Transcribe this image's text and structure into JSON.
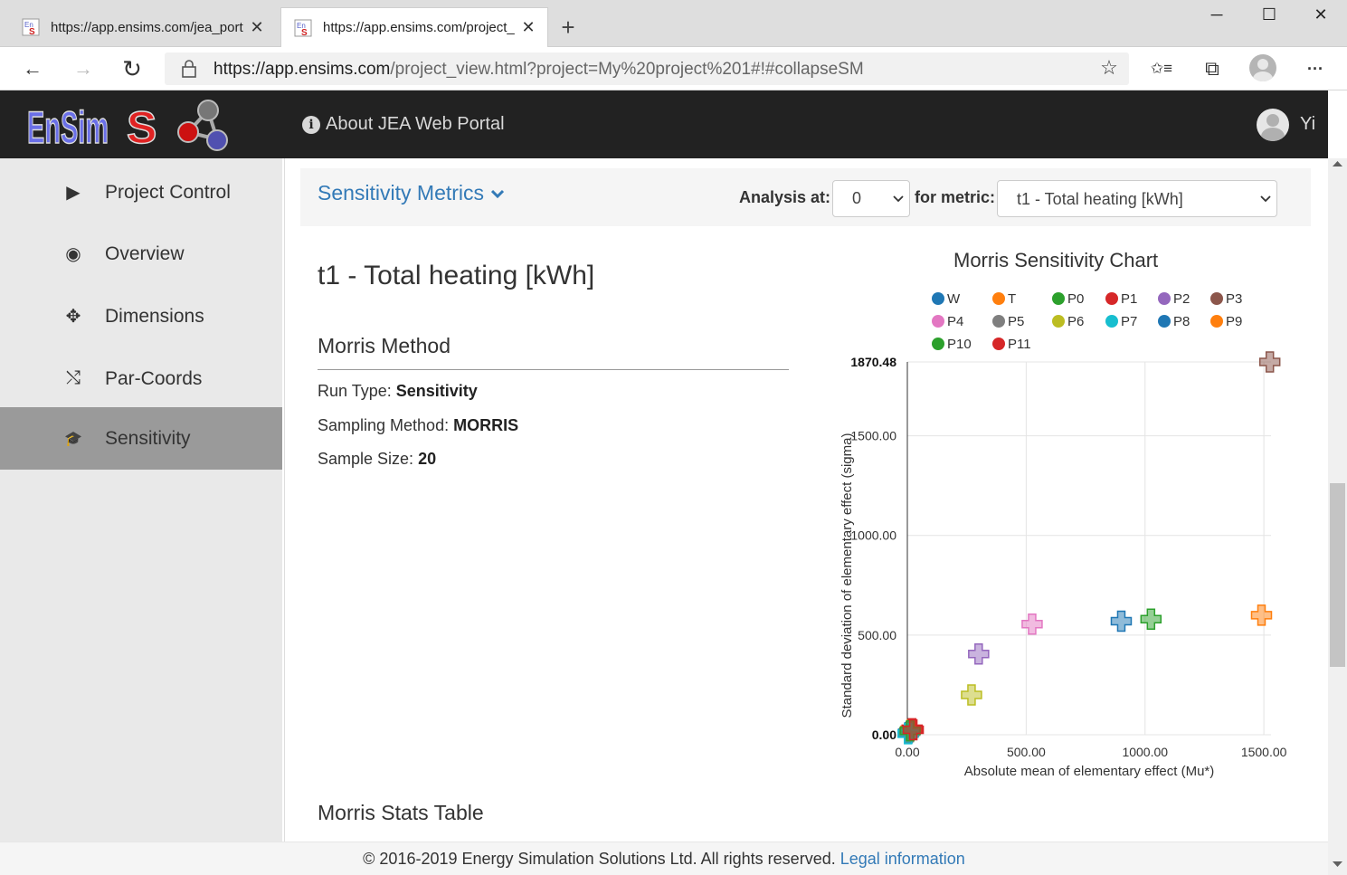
{
  "browser": {
    "tabs": [
      {
        "title": "https://app.ensims.com/jea_port",
        "close": "✕"
      },
      {
        "title": "https://app.ensims.com/project_",
        "close": "✕"
      }
    ],
    "new_tab": "+",
    "window_controls": {
      "minimize": "─",
      "maximize": "☐",
      "close": "✕"
    },
    "nav": {
      "back": "←",
      "forward": "→",
      "reload": "↻",
      "favorite": "☆",
      "favorites_bar": "✩≡",
      "collections": "⧉",
      "more": "···"
    },
    "url": {
      "host": "https://app.ensims.com",
      "path": "/project_view.html?project=My%20project%201#!#collapseSM"
    }
  },
  "header": {
    "about_link": "About JEA Web Portal",
    "user_name": "Yi",
    "info_glyph": "i"
  },
  "sidebar": {
    "items": [
      {
        "label": "Project Control",
        "icon": "play-icon",
        "glyph": "▶"
      },
      {
        "label": "Overview",
        "icon": "eye-icon",
        "glyph": "◉"
      },
      {
        "label": "Dimensions",
        "icon": "move-icon",
        "glyph": "✥"
      },
      {
        "label": "Par-Coords",
        "icon": "shuffle-icon",
        "glyph": "⤭"
      },
      {
        "label": "Sensitivity",
        "icon": "graduation-cap-icon",
        "glyph": "🎓",
        "active": true
      }
    ]
  },
  "panel": {
    "title": "Sensitivity Metrics",
    "analysis_label": "Analysis at:",
    "analysis_value": "0",
    "metric_label": "for metric:",
    "metric_value": "t1 - Total heating [kWh]"
  },
  "content": {
    "metric_heading": "t1 - Total heating [kWh]",
    "morris_heading": "Morris Method",
    "run_type_label": "Run Type:",
    "run_type_value": "Sensitivity",
    "sampling_label": "Sampling Method:",
    "sampling_value": "MORRIS",
    "sample_size_label": "Sample Size:",
    "sample_size_value": "20",
    "stats_heading": "Morris Stats Table"
  },
  "chart_data": {
    "type": "scatter",
    "title": "Morris Sensitivity Chart",
    "xlabel": "Absolute mean of elementary effect (Mu*)",
    "ylabel": "Standard deviation of elementary effect (sigma)",
    "xlim": [
      0,
      1530
    ],
    "ylim": [
      0,
      1870.48
    ],
    "x_ticks": [
      "0.00",
      "500.00",
      "1000.00",
      "1500.00"
    ],
    "y_ticks": [
      "0.00",
      "500.00",
      "1000.00",
      "1500.00",
      "1870.48"
    ],
    "legend_placement": "top",
    "grid": true,
    "series": [
      {
        "name": "W",
        "color": "#1f77b4",
        "x": 5,
        "y": 10
      },
      {
        "name": "T",
        "color": "#ff7f0e",
        "x": 15,
        "y": 25
      },
      {
        "name": "P0",
        "color": "#2ca02c",
        "x": 1025,
        "y": 580
      },
      {
        "name": "P1",
        "color": "#d62728",
        "x": 20,
        "y": 30
      },
      {
        "name": "P2",
        "color": "#9467bd",
        "x": 300,
        "y": 405
      },
      {
        "name": "P3",
        "color": "#8c564b",
        "x": 1525,
        "y": 1870.48
      },
      {
        "name": "P4",
        "color": "#e377c2",
        "x": 525,
        "y": 555
      },
      {
        "name": "P5",
        "color": "#7f7f7f",
        "x": 10,
        "y": 15
      },
      {
        "name": "P6",
        "color": "#bcbd22",
        "x": 270,
        "y": 200
      },
      {
        "name": "P7",
        "color": "#17becf",
        "x": 3,
        "y": 5
      },
      {
        "name": "P8",
        "color": "#1f77b4",
        "x": 900,
        "y": 570
      },
      {
        "name": "P9",
        "color": "#ff7f0e",
        "x": 1490,
        "y": 600
      },
      {
        "name": "P10",
        "color": "#2ca02c",
        "x": 12,
        "y": 20
      },
      {
        "name": "P11",
        "color": "#d62728",
        "x": 25,
        "y": 25
      }
    ]
  },
  "footer": {
    "copyright": "© 2016-2019 Energy Simulation Solutions Ltd. All rights reserved.",
    "legal_link": "Legal information"
  }
}
